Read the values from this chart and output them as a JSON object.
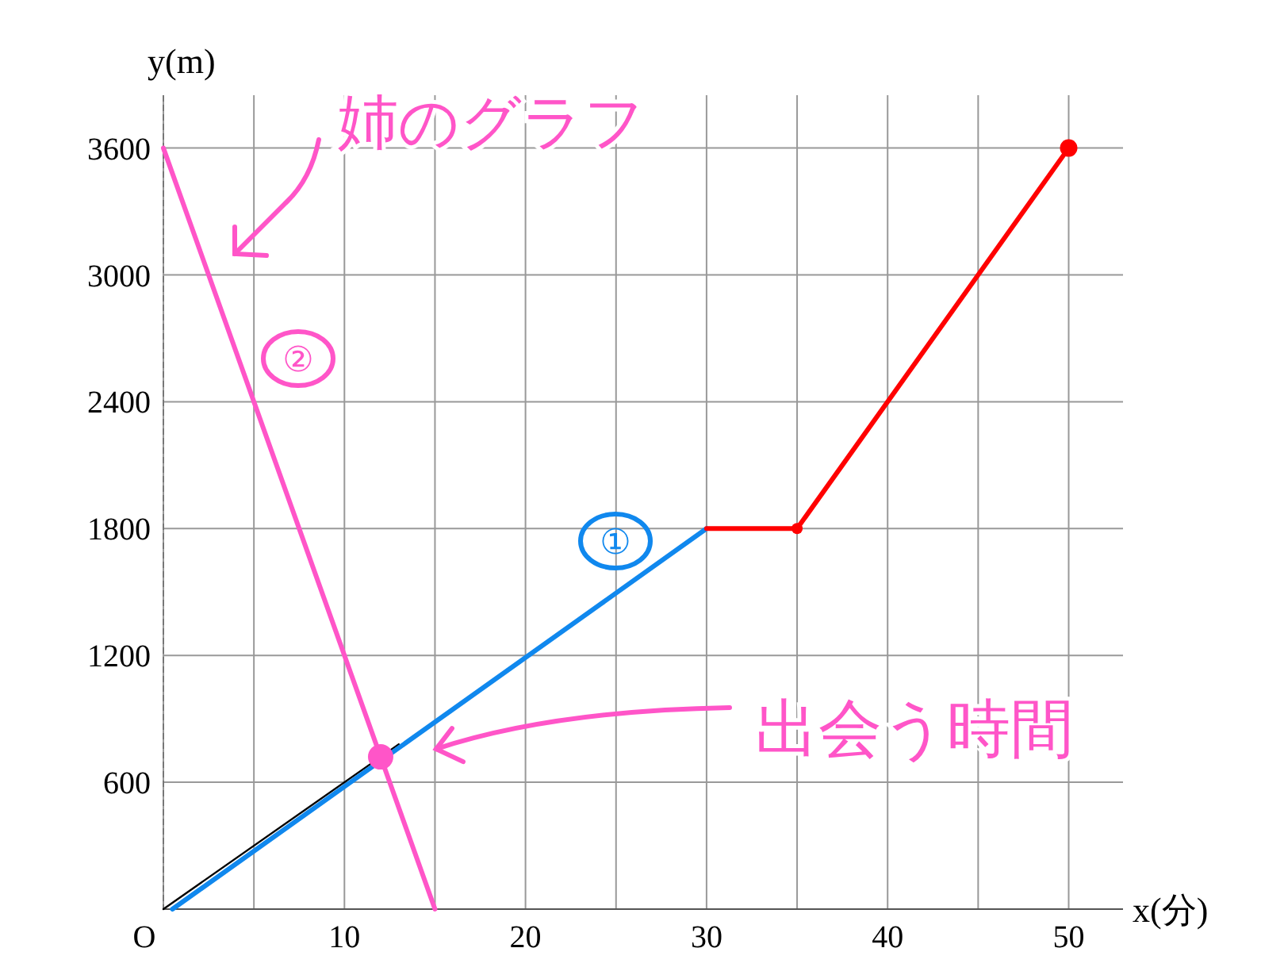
{
  "chart_data": {
    "type": "line",
    "xlabel": "x(分)",
    "ylabel": "y(m)",
    "xlim": [
      0,
      53
    ],
    "ylim": [
      0,
      3850
    ],
    "xticks": [
      {
        "value": 0,
        "label": "O"
      },
      {
        "value": 5,
        "label": null
      },
      10,
      {
        "value": 15,
        "label": null
      },
      20,
      {
        "value": 25,
        "label": null
      },
      30,
      {
        "value": 35,
        "label": null
      },
      40,
      {
        "value": 45,
        "label": null
      },
      50
    ],
    "yticks": [
      600,
      1200,
      1800,
      2400,
      3000,
      3600
    ],
    "grid": true,
    "line_style": "solid",
    "series": [
      {
        "color": "#000000",
        "x": [
          0,
          13
        ],
        "values": [
          0,
          780
        ]
      },
      {
        "color": "#ff55c8",
        "x": [
          0,
          15
        ],
        "values": [
          3600,
          0
        ]
      },
      {
        "color": "#1088ee",
        "x": [
          0.5,
          30
        ],
        "values": [
          0,
          1800
        ]
      },
      {
        "color": "#ff0000",
        "x": [
          30,
          35,
          50
        ],
        "values": [
          1800,
          1800,
          3600
        ],
        "marker": "circle"
      },
      {
        "type": "scatter",
        "color": "#ff55c8",
        "x": [
          12
        ],
        "values": [
          720
        ],
        "marker": "circle"
      }
    ],
    "annotations": [
      "姉のグラフ",
      "②",
      "①",
      "出会う時間"
    ]
  }
}
